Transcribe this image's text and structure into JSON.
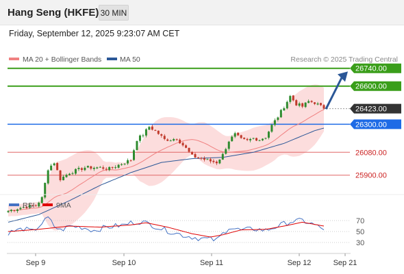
{
  "header": {
    "title": "Hang Seng (HKFE)",
    "timeframe": "30 MIN",
    "datetime": "Friday, September 12, 2025 9:23:07 AM CET"
  },
  "legend": {
    "ma20": "MA 20 + Bollinger Bands",
    "ma50": "MA 50",
    "credit": "Research © 2025 Trading Central"
  },
  "colors": {
    "ma20": "#f08080",
    "ma50": "#2b5797",
    "band_fill": "#fbd7d7",
    "candle_up": "#2e8b2e",
    "candle_down": "#c0392b",
    "resistance": "#3a9e1a",
    "pivot": "#1e6be6",
    "support": "#e06666",
    "current": "#333333",
    "arrow": "#2b5797",
    "rsi": "#4472c4",
    "rsi_ma": "#e00000"
  },
  "chart_data": [
    {
      "type": "candlestick",
      "y_range": [
        25500,
        26900
      ],
      "current_price": "26423.00",
      "levels": [
        {
          "value": 26740,
          "label": "26740.00",
          "kind": "resistance"
        },
        {
          "value": 26600,
          "label": "26600.00",
          "kind": "resistance"
        },
        {
          "value": 26300,
          "label": "26300.00",
          "kind": "pivot"
        },
        {
          "value": 26080,
          "label": "26080.00",
          "kind": "support"
        },
        {
          "value": 25900,
          "label": "25900.00",
          "kind": "support"
        }
      ],
      "x_labels": [
        "Sep 9",
        "Sep 10",
        "Sep 11",
        "Sep 12",
        "Sep 21"
      ],
      "anchors": [
        {
          "i": 0,
          "v": 25620
        },
        {
          "i": 5,
          "v": 25650
        },
        {
          "i": 9,
          "v": 25660
        },
        {
          "i": 11,
          "v": 25720
        },
        {
          "i": 13,
          "v": 25950
        },
        {
          "i": 15,
          "v": 26000
        },
        {
          "i": 17,
          "v": 25870
        },
        {
          "i": 20,
          "v": 25920
        },
        {
          "i": 25,
          "v": 25960
        },
        {
          "i": 30,
          "v": 25960
        },
        {
          "i": 33,
          "v": 25950
        },
        {
          "i": 37,
          "v": 25990
        },
        {
          "i": 40,
          "v": 26020
        },
        {
          "i": 42,
          "v": 26180
        },
        {
          "i": 44,
          "v": 26220
        },
        {
          "i": 46,
          "v": 26280
        },
        {
          "i": 48,
          "v": 26250
        },
        {
          "i": 51,
          "v": 26180
        },
        {
          "i": 53,
          "v": 26180
        },
        {
          "i": 55,
          "v": 26190
        },
        {
          "i": 58,
          "v": 26110
        },
        {
          "i": 60,
          "v": 26050
        },
        {
          "i": 63,
          "v": 26030
        },
        {
          "i": 66,
          "v": 26010
        },
        {
          "i": 68,
          "v": 26000
        },
        {
          "i": 70,
          "v": 26060
        },
        {
          "i": 72,
          "v": 26170
        },
        {
          "i": 74,
          "v": 26220
        },
        {
          "i": 76,
          "v": 26180
        },
        {
          "i": 78,
          "v": 26170
        },
        {
          "i": 80,
          "v": 26190
        },
        {
          "i": 82,
          "v": 26180
        },
        {
          "i": 84,
          "v": 26200
        },
        {
          "i": 86,
          "v": 26290
        },
        {
          "i": 88,
          "v": 26360
        },
        {
          "i": 90,
          "v": 26440
        },
        {
          "i": 92,
          "v": 26520
        },
        {
          "i": 94,
          "v": 26460
        },
        {
          "i": 96,
          "v": 26440
        },
        {
          "i": 98,
          "v": 26480
        },
        {
          "i": 100,
          "v": 26470
        },
        {
          "i": 102,
          "v": 26440
        },
        {
          "i": 103,
          "v": 26423
        }
      ],
      "ma50_anchors": [
        {
          "i": 0,
          "v": 25530
        },
        {
          "i": 10,
          "v": 25590
        },
        {
          "i": 20,
          "v": 25700
        },
        {
          "i": 30,
          "v": 25820
        },
        {
          "i": 40,
          "v": 25920
        },
        {
          "i": 50,
          "v": 26000
        },
        {
          "i": 60,
          "v": 26030
        },
        {
          "i": 70,
          "v": 26040
        },
        {
          "i": 80,
          "v": 26080
        },
        {
          "i": 90,
          "v": 26150
        },
        {
          "i": 100,
          "v": 26250
        },
        {
          "i": 103,
          "v": 26270
        }
      ],
      "forecast_arrow": {
        "from": 26420,
        "to": 26720
      }
    },
    {
      "type": "line",
      "title": "RSI",
      "series": [
        {
          "name": "RSI"
        },
        {
          "name": "9MA"
        }
      ],
      "y_range": [
        15,
        85
      ],
      "y_ticks": [
        70,
        50,
        30
      ],
      "rsi_anchors": [
        {
          "i": 0,
          "v": 48
        },
        {
          "i": 5,
          "v": 55
        },
        {
          "i": 8,
          "v": 50
        },
        {
          "i": 11,
          "v": 65
        },
        {
          "i": 13,
          "v": 75
        },
        {
          "i": 15,
          "v": 60
        },
        {
          "i": 17,
          "v": 52
        },
        {
          "i": 20,
          "v": 60
        },
        {
          "i": 24,
          "v": 58
        },
        {
          "i": 28,
          "v": 52
        },
        {
          "i": 32,
          "v": 58
        },
        {
          "i": 35,
          "v": 60
        },
        {
          "i": 38,
          "v": 62
        },
        {
          "i": 40,
          "v": 66
        },
        {
          "i": 43,
          "v": 68
        },
        {
          "i": 46,
          "v": 64
        },
        {
          "i": 50,
          "v": 55
        },
        {
          "i": 54,
          "v": 48
        },
        {
          "i": 58,
          "v": 42
        },
        {
          "i": 62,
          "v": 38
        },
        {
          "i": 66,
          "v": 36
        },
        {
          "i": 68,
          "v": 34
        },
        {
          "i": 72,
          "v": 58
        },
        {
          "i": 76,
          "v": 52
        },
        {
          "i": 80,
          "v": 55
        },
        {
          "i": 84,
          "v": 52
        },
        {
          "i": 88,
          "v": 60
        },
        {
          "i": 92,
          "v": 68
        },
        {
          "i": 96,
          "v": 70
        },
        {
          "i": 100,
          "v": 62
        },
        {
          "i": 103,
          "v": 53
        }
      ],
      "rsi_ma_anchors": [
        {
          "i": 0,
          "v": 50
        },
        {
          "i": 10,
          "v": 54
        },
        {
          "i": 20,
          "v": 60
        },
        {
          "i": 30,
          "v": 58
        },
        {
          "i": 40,
          "v": 62
        },
        {
          "i": 45,
          "v": 66
        },
        {
          "i": 52,
          "v": 58
        },
        {
          "i": 60,
          "v": 46
        },
        {
          "i": 66,
          "v": 40
        },
        {
          "i": 70,
          "v": 44
        },
        {
          "i": 76,
          "v": 53
        },
        {
          "i": 84,
          "v": 54
        },
        {
          "i": 90,
          "v": 60
        },
        {
          "i": 96,
          "v": 67
        },
        {
          "i": 103,
          "v": 60
        }
      ]
    }
  ]
}
